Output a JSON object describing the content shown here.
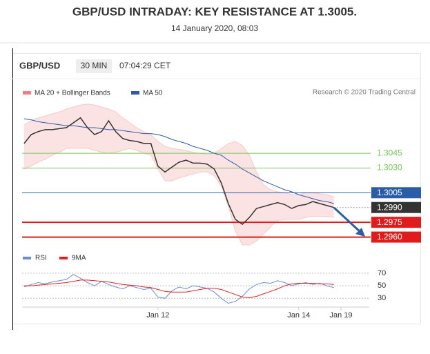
{
  "header": {
    "title": "GBP/USD INTRADAY: KEY RESISTANCE AT 1.3005.",
    "subtitle": "14 January 2020, 08:03"
  },
  "toolbar": {
    "symbol": "GBP/USD",
    "interval": "30 MIN",
    "time": "07:04:29 CET"
  },
  "chart_data": {
    "type": "line",
    "credit": "Research © 2020 Trading Central",
    "categories": [
      null,
      null,
      null,
      null,
      null,
      null,
      null,
      null,
      null,
      null,
      null,
      null,
      null,
      null,
      null,
      null,
      null,
      null,
      null,
      "Jan 12",
      null,
      null,
      null,
      null,
      null,
      null,
      null,
      null,
      null,
      null,
      null,
      null,
      null,
      null,
      null,
      null,
      null,
      null,
      null,
      "Jan 14",
      null,
      null,
      null,
      null,
      null,
      "Jan 19",
      null,
      null,
      null,
      null
    ],
    "ylim": [
      1.2952,
      1.3099
    ],
    "series": [
      {
        "name": "MA 20 + Bollinger Bands",
        "color": "#f08080",
        "upper": [
          1.3074,
          1.3078,
          1.3081,
          1.3083,
          1.3085,
          1.3087,
          1.309,
          1.3092,
          1.3094,
          1.3095,
          1.3094,
          1.3092,
          1.309,
          1.3087,
          1.3081,
          1.3076,
          1.3071,
          1.3067,
          1.3064,
          1.3057,
          1.3052,
          1.305,
          1.3049,
          1.3048,
          1.3046,
          1.3045,
          1.3044,
          1.3045,
          1.305,
          1.3055,
          1.3057,
          1.3053,
          1.3043,
          1.3026,
          1.3013,
          1.3008,
          1.3006,
          1.3005,
          1.3003,
          1.3003,
          1.3005,
          1.3005,
          1.3004,
          1.3003,
          1.3001,
          null,
          null,
          null,
          null,
          null
        ],
        "lower": [
          1.3029,
          1.3032,
          1.3036,
          1.3039,
          1.3043,
          1.3046,
          1.305,
          1.305,
          1.305,
          1.305,
          1.3048,
          1.3046,
          1.3045,
          1.3046,
          1.3048,
          1.305,
          1.3048,
          1.3045,
          1.3043,
          1.3029,
          1.3017,
          1.3017,
          1.302,
          1.3022,
          1.3024,
          1.3026,
          1.3026,
          1.3022,
          1.3012,
          1.2991,
          1.2966,
          1.2952,
          1.2952,
          1.2956,
          1.2963,
          1.297,
          1.2977,
          1.2978,
          1.2978,
          1.2978,
          1.298,
          1.2981,
          1.2981,
          1.2981,
          1.298,
          null,
          null,
          null,
          null,
          null
        ]
      },
      {
        "name": "MA 50",
        "color": "#2e5aa8",
        "values": [
          1.308,
          1.3079,
          1.3077,
          1.3076,
          1.3075,
          1.3074,
          1.3073,
          1.3073,
          1.3072,
          1.3071,
          1.3071,
          1.307,
          1.3069,
          1.3069,
          1.3068,
          1.3067,
          1.3066,
          1.3065,
          1.3065,
          1.3064,
          1.3062,
          1.3059,
          1.3057,
          1.3055,
          1.3052,
          1.305,
          1.3048,
          1.3045,
          1.3043,
          1.3038,
          1.3034,
          1.3029,
          1.3025,
          1.3021,
          1.3017,
          1.3014,
          1.3011,
          1.3008,
          1.3006,
          1.3003,
          1.3001,
          1.2999,
          1.2997,
          1.2996,
          1.2994,
          null,
          null,
          null,
          null,
          null
        ]
      },
      {
        "color": "#333333",
        "values": [
          1.3055,
          1.3064,
          1.3067,
          1.3069,
          1.3069,
          1.307,
          1.3071,
          1.3076,
          1.3081,
          1.3071,
          1.3064,
          1.3067,
          1.3078,
          1.3067,
          1.306,
          1.3058,
          1.3057,
          1.3055,
          1.3055,
          1.3032,
          1.3026,
          1.3031,
          1.3036,
          1.3038,
          1.3035,
          1.3035,
          1.3034,
          1.3029,
          1.3015,
          1.2994,
          1.2978,
          1.2973,
          1.298,
          1.2989,
          1.2991,
          1.2993,
          1.2995,
          1.2993,
          1.2989,
          1.2992,
          1.2993,
          1.2996,
          1.2994,
          1.2992,
          1.299,
          null,
          null,
          null,
          null,
          null
        ]
      }
    ],
    "levels": {
      "values": [
        1.3045,
        1.303,
        1.3005,
        1.299,
        1.2975,
        1.296
      ],
      "value_labels": [
        "1.3045",
        "1.3030",
        "1.3005",
        "1.2990",
        "1.2975",
        "1.2960"
      ],
      "colors": [
        "#7cc45e",
        "#7cc45e",
        "#2a5ca8",
        "#333333",
        "#e01b1b",
        "#e01b1b"
      ],
      "styles": [
        "text",
        "text",
        "box",
        "box",
        "box",
        "box"
      ],
      "line_styles": [
        "solid",
        "solid",
        "solid",
        "dotted",
        "solid",
        "solid"
      ]
    },
    "rsi_panel": {
      "type": "line",
      "ylim": [
        16,
        82
      ],
      "yticks": [
        30,
        50,
        70
      ],
      "series": [
        {
          "name": "RSI",
          "color": "#6b8bd6",
          "values": [
            48,
            52,
            55,
            53,
            56,
            58,
            60,
            68,
            62,
            55,
            50,
            57,
            52,
            48,
            45,
            50,
            47,
            44,
            46,
            32,
            30,
            42,
            48,
            45,
            50,
            48,
            46,
            40,
            30,
            22,
            25,
            33,
            45,
            52,
            55,
            54,
            58,
            55,
            50,
            53,
            55,
            52,
            54,
            50,
            47,
            null,
            null,
            null,
            null,
            null
          ]
        },
        {
          "name": "9MA",
          "color": "#e02020",
          "values": [
            50,
            50,
            51,
            52,
            53,
            54,
            55,
            57,
            59,
            59,
            58,
            57,
            56,
            54,
            52,
            51,
            50,
            48,
            47,
            44,
            41,
            40,
            40,
            40,
            42,
            44,
            46,
            46,
            44,
            40,
            36,
            32,
            31,
            33,
            37,
            41,
            45,
            50,
            53,
            54,
            54,
            54,
            53,
            53,
            52,
            null,
            null,
            null,
            null,
            null
          ]
        }
      ]
    }
  }
}
